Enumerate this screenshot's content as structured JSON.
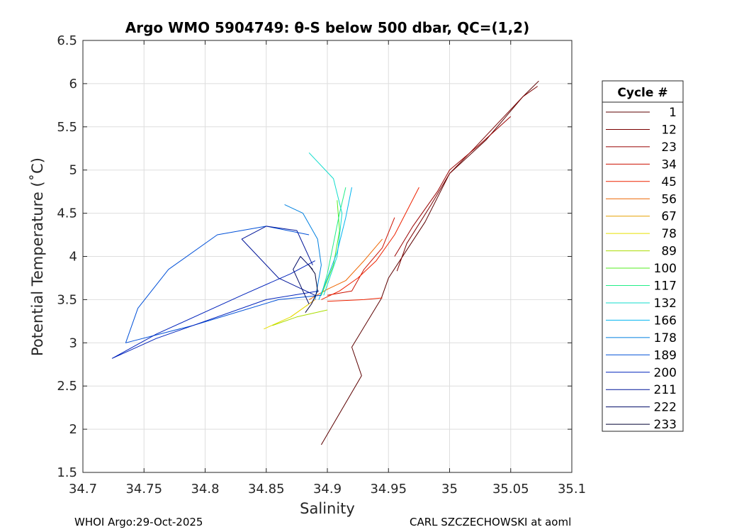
{
  "chart_data": {
    "type": "line",
    "title": "Argo WMO 5904749: θ-S below 500 dbar,  QC=(1,2)",
    "xlabel": "Salinity",
    "ylabel": "Potential Temperature (˚C)",
    "xlim": [
      34.7,
      35.1
    ],
    "ylim": [
      1.5,
      6.5
    ],
    "xticks": [
      34.7,
      34.75,
      34.8,
      34.85,
      34.9,
      34.95,
      35,
      35.05,
      35.1
    ],
    "xtick_labels": [
      "34.7",
      "34.75",
      "34.8",
      "34.85",
      "34.9",
      "34.95",
      "35",
      "35.05",
      "35.1"
    ],
    "yticks": [
      1.5,
      2,
      2.5,
      3,
      3.5,
      4,
      4.5,
      5,
      5.5,
      6,
      6.5
    ],
    "ytick_labels": [
      "1.5",
      "2",
      "2.5",
      "3",
      "3.5",
      "4",
      "4.5",
      "5",
      "5.5",
      "6",
      "6.5"
    ],
    "grid": true,
    "legend": {
      "title": "Cycle #",
      "placement": "right",
      "entries": [
        {
          "label": "1",
          "color": "#5c0000"
        },
        {
          "label": "12",
          "color": "#7a0000"
        },
        {
          "label": "23",
          "color": "#990000"
        },
        {
          "label": "34",
          "color": "#cc1100"
        },
        {
          "label": "45",
          "color": "#ee2200"
        },
        {
          "label": "56",
          "color": "#ee6600"
        },
        {
          "label": "67",
          "color": "#e6a000"
        },
        {
          "label": "78",
          "color": "#e8e000"
        },
        {
          "label": "89",
          "color": "#aadd00"
        },
        {
          "label": "100",
          "color": "#55ee22"
        },
        {
          "label": "117",
          "color": "#22ee88"
        },
        {
          "label": "132",
          "color": "#11ddcc"
        },
        {
          "label": "166",
          "color": "#00b4f0"
        },
        {
          "label": "178",
          "color": "#0080e0"
        },
        {
          "label": "189",
          "color": "#0050d8"
        },
        {
          "label": "200",
          "color": "#0022bb"
        },
        {
          "label": "211",
          "color": "#001599"
        },
        {
          "label": "222",
          "color": "#000a66"
        },
        {
          "label": "233",
          "color": "#000033"
        }
      ]
    },
    "series": [
      {
        "color": "#5c0000",
        "x": [
          34.895,
          34.928,
          34.92,
          34.944,
          34.95,
          34.98,
          35.0,
          35.03,
          35.06,
          35.073
        ],
        "y": [
          1.82,
          2.62,
          2.95,
          3.51,
          3.75,
          4.4,
          4.96,
          5.35,
          5.85,
          6.03
        ]
      },
      {
        "color": "#7a0000",
        "x": [
          34.957,
          34.965,
          34.985,
          35.0,
          35.02,
          35.04,
          35.06,
          35.072
        ],
        "y": [
          3.83,
          4.15,
          4.6,
          4.96,
          5.25,
          5.55,
          5.85,
          5.97
        ]
      },
      {
        "color": "#990000",
        "x": [
          34.955,
          34.97,
          34.99,
          35.0,
          35.025,
          35.05
        ],
        "y": [
          4.0,
          4.35,
          4.75,
          5.0,
          5.3,
          5.62
        ]
      },
      {
        "color": "#cc1100",
        "x": [
          34.9,
          34.92,
          34.93,
          34.945,
          34.955
        ],
        "y": [
          3.55,
          3.6,
          3.85,
          4.1,
          4.45
        ]
      },
      {
        "color": "#ee2200",
        "x": [
          34.895,
          34.91,
          34.925,
          34.94,
          34.955,
          34.975
        ],
        "y": [
          3.5,
          3.6,
          3.75,
          3.95,
          4.25,
          4.8
        ]
      },
      {
        "color": "#ee2200",
        "x": [
          34.9,
          34.93,
          34.945
        ],
        "y": [
          3.48,
          3.5,
          3.52
        ]
      },
      {
        "color": "#ee6600",
        "x": [
          34.885,
          34.9,
          34.915,
          34.93,
          34.945
        ],
        "y": [
          3.5,
          3.62,
          3.72,
          3.95,
          4.2
        ]
      },
      {
        "color": "#e6a000",
        "x": [
          34.87,
          34.88,
          34.89
        ],
        "y": [
          3.3,
          3.4,
          3.5
        ]
      },
      {
        "color": "#e8e000",
        "x": [
          34.848,
          34.87,
          34.885
        ],
        "y": [
          3.16,
          3.3,
          3.45
        ]
      },
      {
        "color": "#aadd00",
        "x": [
          34.855,
          34.875,
          34.9
        ],
        "y": [
          3.2,
          3.3,
          3.38
        ]
      },
      {
        "color": "#55ee22",
        "x": [
          34.895,
          34.905,
          34.91,
          34.908
        ],
        "y": [
          3.55,
          3.9,
          4.3,
          4.65
        ]
      },
      {
        "color": "#22ee88",
        "x": [
          34.895,
          34.9,
          34.905,
          34.91,
          34.915
        ],
        "y": [
          3.55,
          3.8,
          4.15,
          4.5,
          4.8
        ]
      },
      {
        "color": "#11ddcc",
        "x": [
          34.897,
          34.908,
          34.912,
          34.905,
          34.885
        ],
        "y": [
          3.55,
          4.0,
          4.5,
          4.9,
          5.2
        ]
      },
      {
        "color": "#00b4f0",
        "x": [
          34.893,
          34.9,
          34.908,
          34.915,
          34.92
        ],
        "y": [
          3.5,
          3.75,
          4.05,
          4.45,
          4.8
        ]
      },
      {
        "color": "#0080e0",
        "x": [
          34.89,
          34.895,
          34.892,
          34.88,
          34.865
        ],
        "y": [
          3.5,
          3.9,
          4.2,
          4.5,
          4.6
        ]
      },
      {
        "color": "#0050d8",
        "x": [
          34.895,
          34.86,
          34.79,
          34.735,
          34.745,
          34.77,
          34.81,
          34.85,
          34.885
        ],
        "y": [
          3.55,
          3.5,
          3.2,
          3.0,
          3.4,
          3.85,
          4.25,
          4.35,
          4.25
        ]
      },
      {
        "color": "#0022bb",
        "x": [
          34.893,
          34.85,
          34.76,
          34.724,
          34.76,
          34.83,
          34.87,
          34.89
        ],
        "y": [
          3.6,
          3.5,
          3.05,
          2.82,
          3.1,
          3.55,
          3.8,
          3.95
        ]
      },
      {
        "color": "#001599",
        "x": [
          34.89,
          34.86,
          34.83,
          34.85,
          34.875,
          34.888
        ],
        "y": [
          3.55,
          3.75,
          4.2,
          4.35,
          4.3,
          3.9
        ]
      },
      {
        "color": "#000a66",
        "x": [
          34.885,
          34.88,
          34.872,
          34.878,
          34.888
        ],
        "y": [
          3.45,
          3.6,
          3.85,
          4.0,
          3.85
        ]
      },
      {
        "color": "#000033",
        "x": [
          34.882,
          34.887,
          34.892,
          34.89,
          34.885
        ],
        "y": [
          3.35,
          3.45,
          3.6,
          3.8,
          3.9
        ]
      }
    ]
  },
  "footer": {
    "left": "WHOI Argo:29-Oct-2025",
    "right": "CARL SZCZECHOWSKI at aoml"
  }
}
